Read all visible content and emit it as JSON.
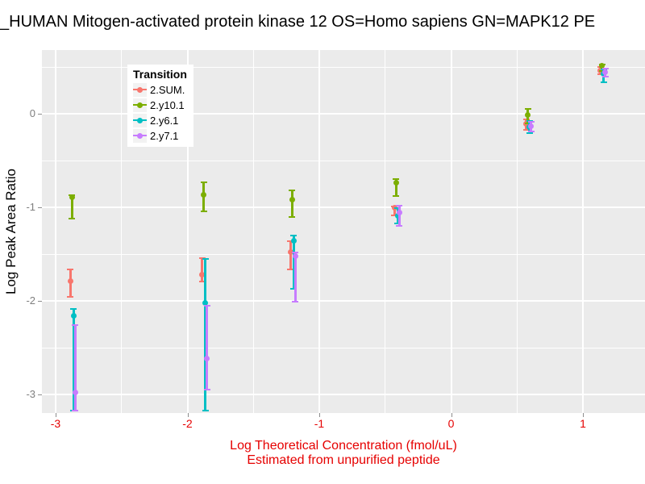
{
  "title": "_HUMAN Mitogen-activated protein kinase 12 OS=Homo sapiens GN=MAPK12 PE",
  "legend": {
    "title": "Transition"
  },
  "colors": {
    "panel_bg": "#EBEBEB",
    "gridline": "#FFFFFF",
    "x_axis_text": "#E60000",
    "y_axis_text": "#7F7F7F",
    "tick_mark": "#8C8C8C",
    "title_text": "#000000"
  },
  "chart_data": {
    "type": "scatter",
    "title": "_HUMAN Mitogen-activated protein kinase 12 OS=Homo sapiens GN=MAPK12 PE",
    "xlabel": "Log Theoretical Concentration (fmol/uL)",
    "xlabel_line2": "Estimated from unpurified peptide",
    "ylabel": "Log Peak Area Ratio",
    "legend_title": "Transition",
    "legend_position": "top-left-inside",
    "grid": true,
    "error_bars": true,
    "xlim": [
      -3.1,
      1.48
    ],
    "ylim": [
      -3.2,
      0.68
    ],
    "x_tick_labels": [
      "-3",
      "-2",
      "-1",
      "0",
      "1"
    ],
    "x_ticks": [
      -3,
      -2,
      -1,
      0,
      1
    ],
    "x_minor_ticks": [
      -2.5,
      -1.5,
      -0.5,
      0.5
    ],
    "y_tick_labels": [
      "0",
      "-1",
      "-2",
      "-3"
    ],
    "y_ticks": [
      0,
      -1,
      -2,
      -3
    ],
    "y_minor_ticks": [
      0.5,
      -0.5,
      -1.5,
      -2.5
    ],
    "x": [
      -2.87,
      -1.87,
      -1.2,
      -0.41,
      0.59,
      1.15
    ],
    "series": [
      {
        "name": "2.SUM.",
        "color": "#F8766D",
        "points": [
          {
            "y": -1.79,
            "lo": -1.96,
            "hi": -1.66
          },
          {
            "y": -1.72,
            "lo": -1.79,
            "hi": -1.54
          },
          {
            "y": -1.48,
            "lo": -1.66,
            "hi": -1.36
          },
          {
            "y": -1.0,
            "lo": -1.09,
            "hi": -0.99
          },
          {
            "y": -0.11,
            "lo": -0.17,
            "hi": -0.06
          },
          {
            "y": 0.46,
            "lo": 0.42,
            "hi": 0.5
          }
        ]
      },
      {
        "name": "2.y10.1",
        "color": "#7CAE00",
        "points": [
          {
            "y": -0.89,
            "lo": -1.12,
            "hi": -0.87
          },
          {
            "y": -0.87,
            "lo": -1.04,
            "hi": -0.73
          },
          {
            "y": -0.92,
            "lo": -1.1,
            "hi": -0.82
          },
          {
            "y": -0.74,
            "lo": -0.88,
            "hi": -0.7
          },
          {
            "y": -0.01,
            "lo": -0.1,
            "hi": 0.05
          },
          {
            "y": 0.51,
            "lo": 0.46,
            "hi": 0.53
          }
        ]
      },
      {
        "name": "2.y6.1",
        "color": "#00BFC4",
        "points": [
          {
            "y": -2.16,
            "lo": -3.17,
            "hi": -2.09
          },
          {
            "y": -2.02,
            "lo": -3.17,
            "hi": -1.55
          },
          {
            "y": -1.36,
            "lo": -1.87,
            "hi": -1.3
          },
          {
            "y": -1.09,
            "lo": -1.17,
            "hi": -1.01
          },
          {
            "y": -0.14,
            "lo": -0.21,
            "hi": -0.08
          },
          {
            "y": 0.43,
            "lo": 0.34,
            "hi": 0.47
          }
        ]
      },
      {
        "name": "2.y7.1",
        "color": "#C77CFF",
        "points": [
          {
            "y": -2.98,
            "lo": -3.17,
            "hi": -2.26
          },
          {
            "y": -2.62,
            "lo": -2.95,
            "hi": -2.05
          },
          {
            "y": -1.52,
            "lo": -2.01,
            "hi": -1.48
          },
          {
            "y": -1.06,
            "lo": -1.2,
            "hi": -0.98
          },
          {
            "y": -0.13,
            "lo": -0.19,
            "hi": -0.09
          },
          {
            "y": 0.44,
            "lo": 0.4,
            "hi": 0.48
          }
        ]
      }
    ]
  }
}
